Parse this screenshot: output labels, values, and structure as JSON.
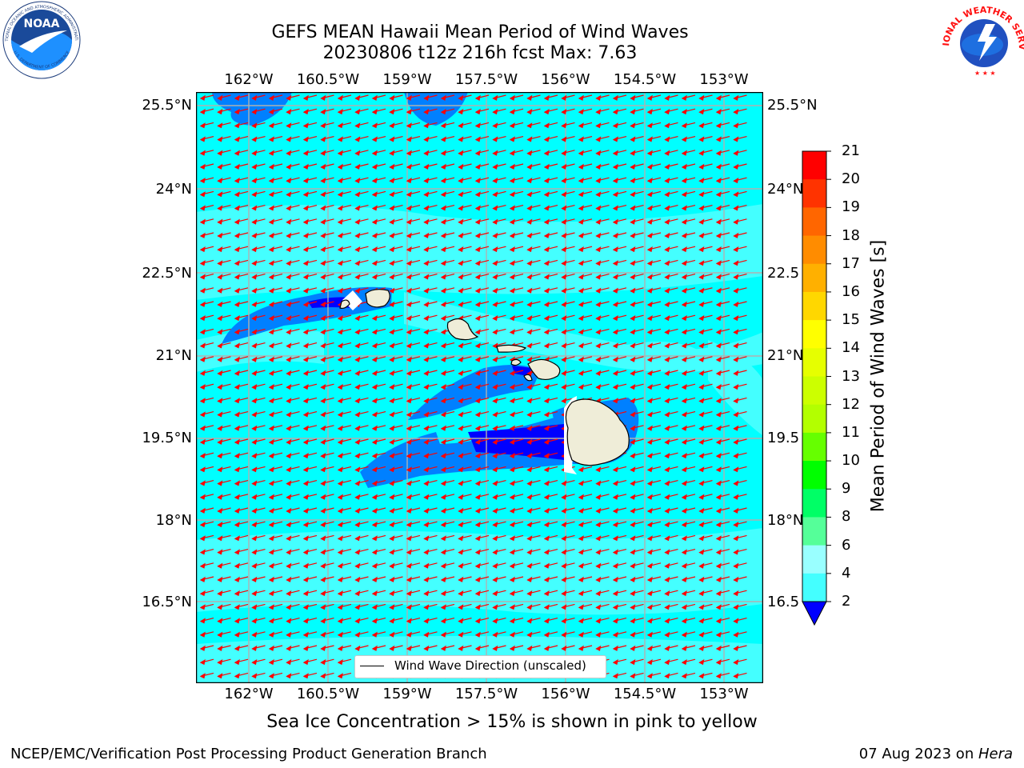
{
  "title_line1": "GEFS MEAN Hawaii Mean Period of Wind Waves",
  "title_line2": "20230806 t12z 216h fcst   Max: 7.63",
  "lon_labels": [
    "162°W",
    "160.5°W",
    "159°W",
    "157.5°W",
    "156°W",
    "154.5°W",
    "153°W"
  ],
  "lat_labels": [
    "25.5°N",
    "24°N",
    "22.5°N",
    "21°N",
    "19.5°N",
    "18°N",
    "16.5°N"
  ],
  "lat_labels_right": [
    "25.5°N",
    "24°N",
    "22.5",
    "21°N",
    "19.5",
    "18°N",
    "16.5"
  ],
  "legend": {
    "label": "Wind Wave Direction (unscaled)"
  },
  "colorbar": {
    "label": "Mean Period of Wind Waves [s]",
    "ticks": [
      "21",
      "20",
      "19",
      "18",
      "17",
      "16",
      "15",
      "14",
      "13",
      "12",
      "11",
      "10",
      "9",
      "8",
      "6",
      "4",
      "2"
    ],
    "colors": [
      "#ff0000",
      "#ff3300",
      "#ff6600",
      "#ff8c00",
      "#ffb000",
      "#ffd700",
      "#ffff00",
      "#e6ff00",
      "#ccff00",
      "#b3ff00",
      "#66ff00",
      "#00ff00",
      "#00ff66",
      "#55ff99",
      "#99ffff",
      "#44ffff",
      "#00ffff",
      "#0080ff"
    ],
    "underflow_color": "#0000ff"
  },
  "sea_ice_note": "Sea Ice Concentration > 15% is shown in pink to yellow",
  "footer_left": "NCEP/EMC/Verification Post Processing Product Generation Branch",
  "footer_date": "07 Aug 2023 on ",
  "footer_host": "Hera",
  "noaa_logo": {
    "text": "NOAA",
    "ring_text": "NATIONAL OCEANIC AND ATMOSPHERIC ADMINISTRATION",
    "ring_text_bottom": "U.S. DEPARTMENT OF COMMERCE"
  },
  "nws_logo": {
    "ring_text": "NATIONAL WEATHER SERVICE"
  },
  "map_colors": {
    "ocean": "#00ffff",
    "light_band": "#44ffff",
    "period_2_4": "#0080ff",
    "period_lt2": "#0000ff",
    "land": "#efedd8",
    "arrow": "#ff0000"
  }
}
